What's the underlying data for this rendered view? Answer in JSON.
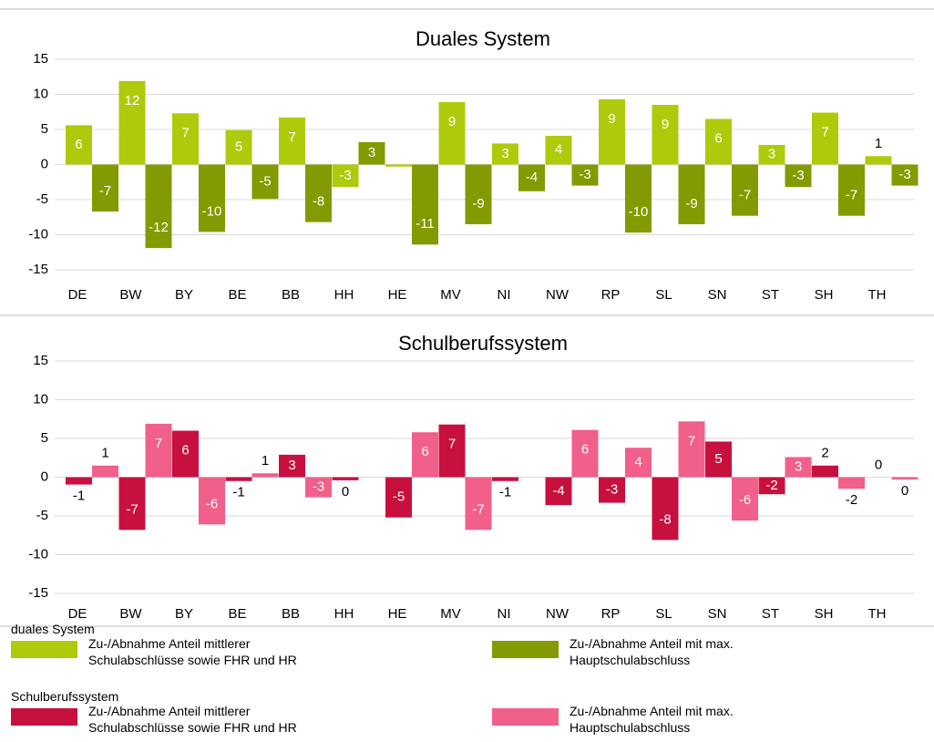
{
  "chart_data": [
    {
      "type": "bar",
      "title": "Duales System",
      "legend_title": "duales System",
      "categories": [
        "DE",
        "BW",
        "BY",
        "BE",
        "BB",
        "HH",
        "HE",
        "MV",
        "NI",
        "NW",
        "RP",
        "SL",
        "SN",
        "ST",
        "SH",
        "TH"
      ],
      "ylim": [
        -15,
        15
      ],
      "yticks": [
        -15,
        -10,
        -5,
        0,
        5,
        10,
        15
      ],
      "grid": true,
      "series": [
        {
          "name": "Zu-/Abnahme Anteil mittlerer Schulabschlüsse sowie FHR und HR",
          "color": "#afca0b",
          "values": [
            5.6,
            11.9,
            7.3,
            4.9,
            6.7,
            -3.2,
            -0.3,
            8.9,
            3.0,
            4.1,
            9.3,
            8.5,
            6.5,
            2.8,
            7.4,
            1.2
          ],
          "value_labels": [
            "6",
            "12",
            "7",
            "5",
            "7",
            "-3",
            null,
            "9",
            "3",
            "4",
            "9",
            "9",
            "6",
            "3",
            "7",
            "1"
          ]
        },
        {
          "name": "Zu-/Abnahme Anteil mit max. Hauptschulabschluss",
          "color": "#839a00",
          "values": [
            -6.7,
            -11.9,
            -9.6,
            -4.9,
            -8.2,
            3.2,
            -11.4,
            -8.5,
            -3.8,
            -3.0,
            -9.7,
            -8.5,
            -7.3,
            -3.2,
            -7.3,
            -3.0
          ],
          "value_labels": [
            "-7",
            "-12",
            "-10",
            "-5",
            "-8",
            "3",
            "-11",
            "-9",
            "-4",
            "-3",
            "-10",
            "-9",
            "-7",
            "-3",
            "-7",
            "-3"
          ]
        }
      ]
    },
    {
      "type": "bar",
      "title": "Schulberufssystem",
      "legend_title": "Schulberufssystem",
      "categories": [
        "DE",
        "BW",
        "BY",
        "BE",
        "BB",
        "HH",
        "HE",
        "MV",
        "NI",
        "NW",
        "RP",
        "SL",
        "SN",
        "ST",
        "SH",
        "TH"
      ],
      "ylim": [
        -15,
        15
      ],
      "yticks": [
        -15,
        -10,
        -5,
        0,
        5,
        10,
        15
      ],
      "grid": true,
      "series": [
        {
          "name": "Zu-/Abnahme Anteil mittlerer Schulabschlüsse sowie FHR und HR",
          "color": "#c8103e",
          "values": [
            -0.95,
            -6.8,
            6.0,
            -0.5,
            2.9,
            -0.4,
            -5.2,
            6.8,
            -0.5,
            -3.6,
            -3.3,
            -8.1,
            4.6,
            -2.2,
            1.5,
            0
          ],
          "value_labels": [
            "-1",
            "-7",
            "6",
            "-1",
            "3",
            "0",
            "-5",
            "7",
            "-1",
            "-4",
            "-3",
            "-8",
            "5",
            "-2",
            "2",
            "0"
          ]
        },
        {
          "name": "Zu-/Abnahme Anteil mit max. Hauptschulabschluss",
          "color": "#f0608a",
          "values": [
            1.5,
            6.9,
            -6.1,
            0.5,
            -2.6,
            null,
            5.8,
            -6.8,
            null,
            6.1,
            3.8,
            7.2,
            -5.6,
            2.6,
            -1.5,
            -0.3
          ],
          "value_labels": [
            "1",
            "7",
            "-6",
            "1",
            "-3",
            null,
            "6",
            "-7",
            null,
            "6",
            "4",
            "7",
            "-6",
            "3",
            "-2",
            "0"
          ]
        }
      ]
    }
  ]
}
